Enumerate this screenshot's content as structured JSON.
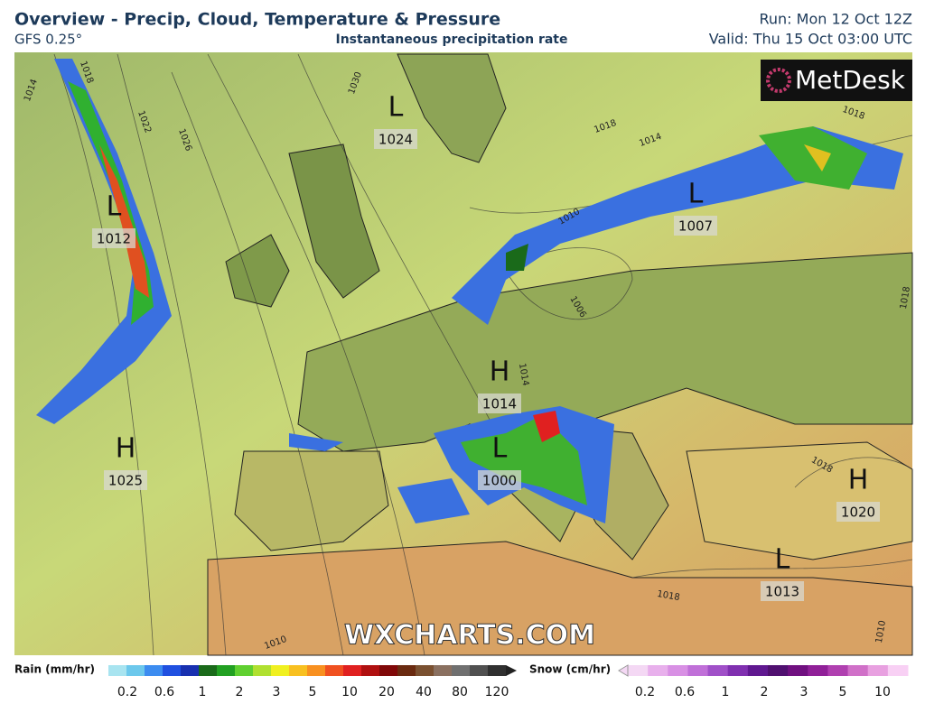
{
  "header": {
    "title": "Overview - Precip, Cloud, Temperature & Pressure",
    "model": "GFS 0.25°",
    "subtitle": "Instantaneous precipitation rate",
    "run": "Run: Mon 12 Oct 12Z",
    "valid": "Valid: Thu 15 Oct 03:00 UTC"
  },
  "logo": "MetDesk",
  "watermark": "WXCHARTS.COM",
  "centers": [
    {
      "letter": "L",
      "pressure": "1024"
    },
    {
      "letter": "L",
      "pressure": "1012"
    },
    {
      "letter": "L",
      "pressure": "1007"
    },
    {
      "letter": "H",
      "pressure": "1014"
    },
    {
      "letter": "L",
      "pressure": "1000"
    },
    {
      "letter": "H",
      "pressure": "1025"
    },
    {
      "letter": "H",
      "pressure": "1020"
    },
    {
      "letter": "L",
      "pressure": "1013"
    }
  ],
  "isobar_labels": [
    "1018",
    "1014",
    "1022",
    "1026",
    "1030",
    "1018",
    "1014",
    "1018",
    "1010",
    "1018",
    "1006",
    "1014",
    "1018",
    "1018",
    "1010",
    "1010"
  ],
  "legend": {
    "rain": {
      "label": "Rain (mm/hr)",
      "ticks": [
        "0.2",
        "0.6",
        "1",
        "2",
        "3",
        "5",
        "10",
        "20",
        "40",
        "80",
        "120"
      ],
      "colors": [
        "#a8e4f0",
        "#6cc8ec",
        "#3c8cf0",
        "#2050e0",
        "#1830b0",
        "#1a6a1a",
        "#22a022",
        "#60d030",
        "#b0e030",
        "#f0f020",
        "#f8c020",
        "#f89020",
        "#f05020",
        "#e02020",
        "#b01010",
        "#800808",
        "#6a2a10",
        "#7a5030",
        "#8a7060",
        "#707070",
        "#505050",
        "#303030"
      ]
    },
    "snow": {
      "label": "Snow (cm/hr)",
      "ticks": [
        "0.2",
        "0.6",
        "1",
        "2",
        "3",
        "5",
        "10"
      ],
      "colors": [
        "#f4d8f4",
        "#e8b0ec",
        "#d890e4",
        "#c070d8",
        "#a050c8",
        "#8030b0",
        "#601890",
        "#501070",
        "#701080",
        "#902098",
        "#b040b0",
        "#d070c8",
        "#e8a0e0",
        "#f8d0f4"
      ]
    }
  }
}
